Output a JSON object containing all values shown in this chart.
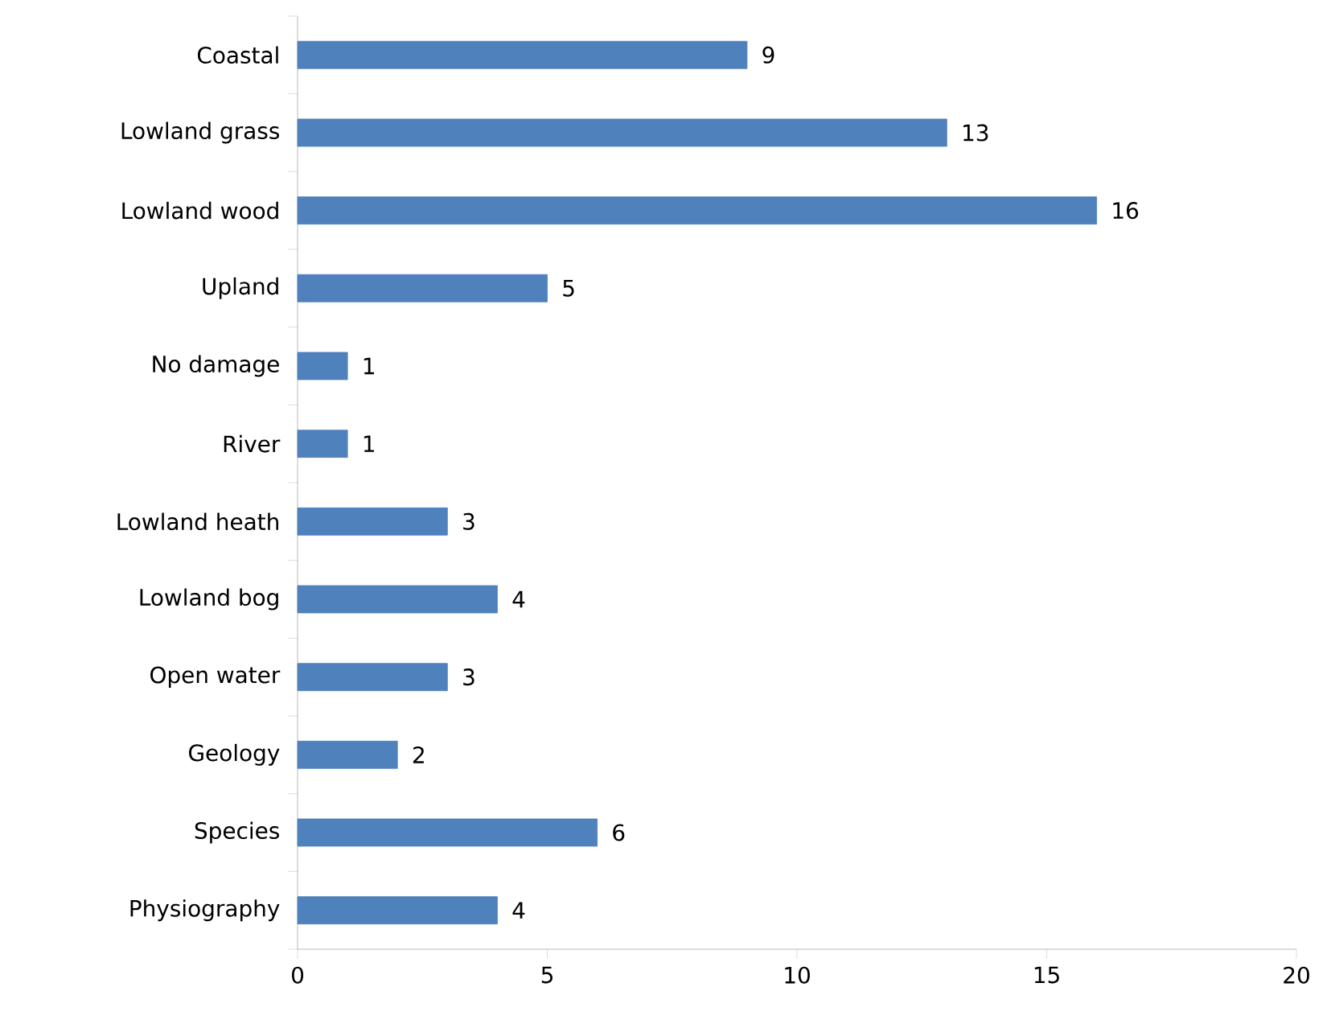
{
  "chart_data": {
    "type": "bar",
    "orientation": "horizontal",
    "categories": [
      "Coastal",
      "Lowland grass",
      "Lowland wood",
      "Upland",
      "No damage",
      "River",
      "Lowland heath",
      "Lowland bog",
      "Open water",
      "Geology",
      "Species",
      "Physiography"
    ],
    "values": [
      9,
      13,
      16,
      5,
      1,
      1,
      3,
      4,
      3,
      2,
      6,
      4
    ],
    "color": "#4f81bd",
    "xlim": [
      0,
      20
    ],
    "xticks": [
      0,
      5,
      10,
      15,
      20
    ],
    "data_labels": true,
    "grid": false
  }
}
